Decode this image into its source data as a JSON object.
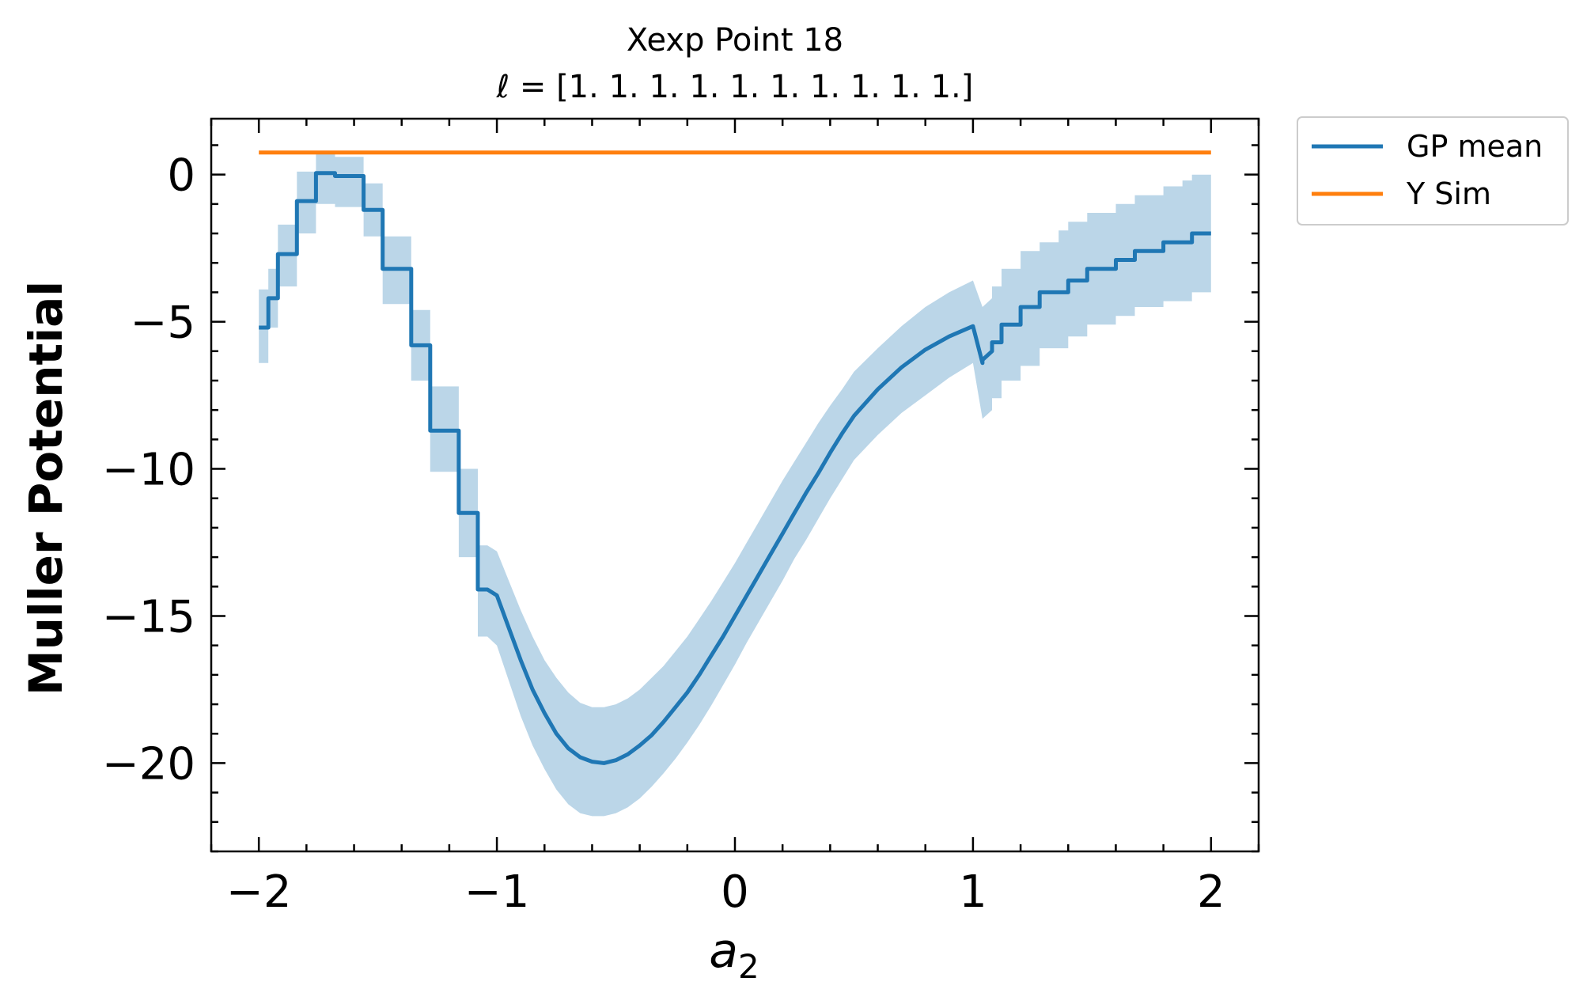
{
  "chart_data": {
    "type": "line",
    "title": "Xexp Point 18",
    "subtitle": "ℓ = [1. 1. 1. 1. 1. 1. 1. 1. 1. 1.]",
    "xlabel_base": "a",
    "xlabel_sub": "2",
    "ylabel": "Muller Potential",
    "xlim": [
      -2.2,
      2.2
    ],
    "ylim": [
      -23,
      1.9
    ],
    "xticks": [
      -2,
      -1,
      0,
      1,
      2
    ],
    "xtick_labels": [
      "−2",
      "−1",
      "0",
      "1",
      "2"
    ],
    "yticks": [
      0,
      -5,
      -10,
      -15,
      -20
    ],
    "ytick_labels": [
      "0",
      "−5",
      "−10",
      "−15",
      "−20"
    ],
    "legend_position": "outside top-right",
    "series": [
      {
        "name": "GP mean",
        "color": "#1f77b4",
        "band_color": "#1f77b4",
        "band_opacity": 0.3,
        "x": [
          -2.0,
          -1.96,
          -1.96,
          -1.92,
          -1.92,
          -1.88,
          -1.88,
          -1.84,
          -1.84,
          -1.8,
          -1.8,
          -1.76,
          -1.76,
          -1.72,
          -1.72,
          -1.68,
          -1.68,
          -1.64,
          -1.64,
          -1.6,
          -1.6,
          -1.56,
          -1.56,
          -1.52,
          -1.52,
          -1.48,
          -1.48,
          -1.44,
          -1.44,
          -1.4,
          -1.4,
          -1.36,
          -1.36,
          -1.32,
          -1.32,
          -1.28,
          -1.28,
          -1.24,
          -1.24,
          -1.2,
          -1.2,
          -1.16,
          -1.16,
          -1.12,
          -1.12,
          -1.08,
          -1.08,
          -1.04,
          -1.04,
          -1.0,
          -0.95,
          -0.9,
          -0.85,
          -0.8,
          -0.75,
          -0.7,
          -0.65,
          -0.6,
          -0.55,
          -0.5,
          -0.45,
          -0.4,
          -0.35,
          -0.3,
          -0.25,
          -0.2,
          -0.15,
          -0.1,
          -0.05,
          0.0,
          0.05,
          0.1,
          0.15,
          0.2,
          0.25,
          0.3,
          0.35,
          0.4,
          0.45,
          0.5,
          0.6,
          0.7,
          0.8,
          0.9,
          1.0,
          1.04,
          1.04,
          1.08,
          1.08,
          1.12,
          1.12,
          1.16,
          1.16,
          1.2,
          1.2,
          1.24,
          1.24,
          1.28,
          1.28,
          1.32,
          1.32,
          1.36,
          1.36,
          1.4,
          1.4,
          1.44,
          1.44,
          1.48,
          1.48,
          1.52,
          1.52,
          1.56,
          1.56,
          1.6,
          1.6,
          1.64,
          1.64,
          1.68,
          1.68,
          1.72,
          1.72,
          1.76,
          1.76,
          1.8,
          1.8,
          1.84,
          1.84,
          1.88,
          1.88,
          1.92,
          1.92,
          1.96,
          1.96,
          2.0
        ],
        "y": [
          -5.2,
          -5.2,
          -4.2,
          -4.2,
          -2.7,
          -2.7,
          -2.7,
          -2.7,
          -0.9,
          -0.9,
          -0.9,
          -0.9,
          0.05,
          0.05,
          0.05,
          0.05,
          -0.05,
          -0.05,
          -0.05,
          -0.05,
          -0.05,
          -0.05,
          -1.2,
          -1.2,
          -1.2,
          -1.2,
          -3.2,
          -3.2,
          -3.2,
          -3.2,
          -3.2,
          -3.2,
          -5.8,
          -5.8,
          -5.8,
          -5.8,
          -8.7,
          -8.7,
          -8.7,
          -8.7,
          -8.7,
          -8.7,
          -11.5,
          -11.5,
          -11.5,
          -11.5,
          -14.1,
          -14.1,
          -14.1,
          -14.3,
          -15.4,
          -16.5,
          -17.5,
          -18.3,
          -19.0,
          -19.5,
          -19.8,
          -19.95,
          -20.0,
          -19.9,
          -19.7,
          -19.4,
          -19.05,
          -18.6,
          -18.1,
          -17.6,
          -17.0,
          -16.35,
          -15.7,
          -15.0,
          -14.3,
          -13.6,
          -12.9,
          -12.2,
          -11.5,
          -10.8,
          -10.15,
          -9.45,
          -8.8,
          -8.2,
          -7.3,
          -6.55,
          -5.95,
          -5.5,
          -5.15,
          -6.4,
          -6.3,
          -6.0,
          -5.7,
          -5.7,
          -5.1,
          -5.1,
          -5.1,
          -5.1,
          -4.5,
          -4.5,
          -4.5,
          -4.5,
          -4.0,
          -4.0,
          -4.0,
          -4.0,
          -4.0,
          -4.0,
          -3.6,
          -3.6,
          -3.6,
          -3.6,
          -3.2,
          -3.2,
          -3.2,
          -3.2,
          -3.2,
          -3.2,
          -2.9,
          -2.9,
          -2.9,
          -2.9,
          -2.6,
          -2.6,
          -2.6,
          -2.6,
          -2.6,
          -2.6,
          -2.3,
          -2.3,
          -2.3,
          -2.3,
          -2.3,
          -2.3,
          -2.0,
          -2.0,
          -2.0,
          -2.0
        ],
        "lower": [
          -6.4,
          -6.4,
          -5.2,
          -5.2,
          -3.8,
          -3.8,
          -3.8,
          -3.8,
          -2.0,
          -2.0,
          -2.0,
          -2.0,
          -1.0,
          -1.0,
          -1.0,
          -1.0,
          -1.1,
          -1.1,
          -1.1,
          -1.1,
          -1.1,
          -1.1,
          -2.1,
          -2.1,
          -2.1,
          -2.1,
          -4.4,
          -4.4,
          -4.4,
          -4.4,
          -4.4,
          -4.4,
          -7.0,
          -7.0,
          -7.0,
          -7.0,
          -10.1,
          -10.1,
          -10.1,
          -10.1,
          -10.1,
          -10.1,
          -13.0,
          -13.0,
          -13.0,
          -13.0,
          -15.7,
          -15.7,
          -15.7,
          -16.0,
          -17.2,
          -18.4,
          -19.4,
          -20.2,
          -20.9,
          -21.4,
          -21.7,
          -21.8,
          -21.8,
          -21.7,
          -21.5,
          -21.2,
          -20.8,
          -20.35,
          -19.85,
          -19.3,
          -18.7,
          -18.05,
          -17.35,
          -16.65,
          -15.9,
          -15.2,
          -14.5,
          -13.8,
          -13.05,
          -12.4,
          -11.7,
          -11.0,
          -10.35,
          -9.7,
          -8.85,
          -8.1,
          -7.5,
          -6.9,
          -6.4,
          -8.3,
          -8.3,
          -8.0,
          -7.6,
          -7.6,
          -7.0,
          -7.0,
          -7.0,
          -7.0,
          -6.5,
          -6.5,
          -6.5,
          -6.5,
          -5.9,
          -5.9,
          -5.9,
          -5.9,
          -5.9,
          -5.9,
          -5.5,
          -5.5,
          -5.5,
          -5.5,
          -5.1,
          -5.1,
          -5.1,
          -5.1,
          -5.1,
          -5.1,
          -4.8,
          -4.8,
          -4.8,
          -4.8,
          -4.5,
          -4.5,
          -4.5,
          -4.5,
          -4.5,
          -4.5,
          -4.3,
          -4.3,
          -4.3,
          -4.3,
          -4.3,
          -4.3,
          -4.0,
          -4.0,
          -4.0,
          -4.0
        ],
        "upper": [
          -3.9,
          -3.9,
          -3.2,
          -3.2,
          -1.7,
          -1.7,
          -1.7,
          -1.7,
          0.1,
          0.1,
          0.1,
          0.1,
          0.7,
          0.7,
          0.7,
          0.7,
          0.6,
          0.6,
          0.6,
          0.6,
          0.6,
          0.6,
          -0.3,
          -0.3,
          -0.3,
          -0.3,
          -2.1,
          -2.1,
          -2.1,
          -2.1,
          -2.1,
          -2.1,
          -4.6,
          -4.6,
          -4.6,
          -4.6,
          -7.2,
          -7.2,
          -7.2,
          -7.2,
          -7.2,
          -7.2,
          -10.0,
          -10.0,
          -10.0,
          -10.0,
          -12.6,
          -12.6,
          -12.6,
          -12.8,
          -13.8,
          -14.8,
          -15.7,
          -16.5,
          -17.1,
          -17.6,
          -17.95,
          -18.1,
          -18.1,
          -18.0,
          -17.8,
          -17.5,
          -17.1,
          -16.7,
          -16.2,
          -15.7,
          -15.1,
          -14.5,
          -13.85,
          -13.2,
          -12.5,
          -11.8,
          -11.1,
          -10.4,
          -9.75,
          -9.1,
          -8.45,
          -7.85,
          -7.3,
          -6.7,
          -5.9,
          -5.15,
          -4.5,
          -4.0,
          -3.6,
          -4.5,
          -4.5,
          -4.2,
          -3.8,
          -3.8,
          -3.2,
          -3.2,
          -3.2,
          -3.2,
          -2.6,
          -2.6,
          -2.6,
          -2.6,
          -2.3,
          -2.3,
          -2.3,
          -2.3,
          -1.9,
          -1.9,
          -1.6,
          -1.6,
          -1.6,
          -1.6,
          -1.3,
          -1.3,
          -1.3,
          -1.3,
          -1.3,
          -1.3,
          -1.0,
          -1.0,
          -1.0,
          -1.0,
          -0.7,
          -0.7,
          -0.7,
          -0.7,
          -0.7,
          -0.7,
          -0.4,
          -0.4,
          -0.4,
          -0.4,
          -0.2,
          -0.2,
          0.0,
          0.0,
          0.0,
          0.0
        ]
      },
      {
        "name": "Y Sim",
        "color": "#ff7f0e",
        "x": [
          -2.0,
          2.0
        ],
        "y": [
          0.75,
          0.75
        ]
      }
    ]
  }
}
